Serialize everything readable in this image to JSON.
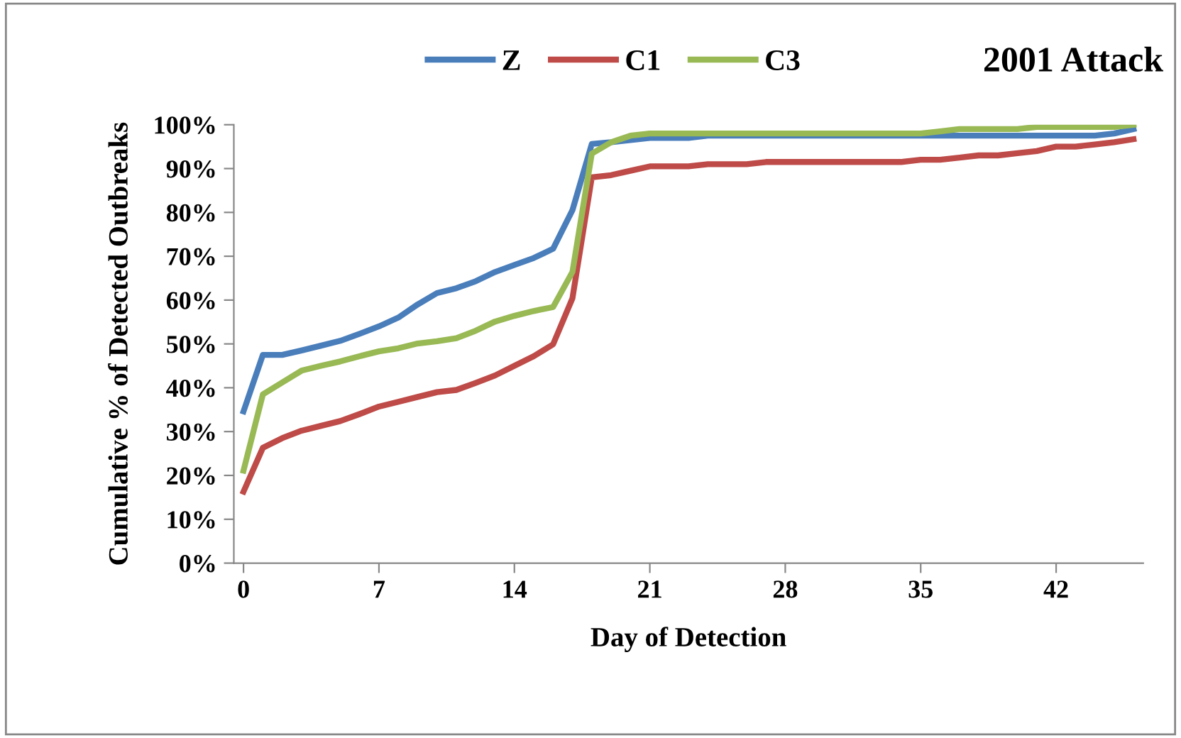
{
  "chart_data": {
    "type": "line",
    "title": "2001 Attack",
    "xlabel": "Day of Detection",
    "ylabel": "Cumulative % of Detected Outbreaks",
    "x": [
      0,
      1,
      2,
      3,
      4,
      5,
      6,
      7,
      8,
      9,
      10,
      11,
      12,
      13,
      14,
      15,
      16,
      17,
      18,
      19,
      20,
      21,
      22,
      23,
      24,
      25,
      26,
      27,
      28,
      29,
      30,
      31,
      32,
      33,
      34,
      35,
      36,
      37,
      38,
      39,
      40,
      41,
      42,
      43,
      44,
      45,
      46
    ],
    "series": [
      {
        "name": "Z",
        "color": "#4a7ebb",
        "values": [
          34.6,
          47.5,
          47.5,
          48.5,
          49.6,
          50.7,
          52.3,
          54,
          56,
          59,
          61.6,
          62.7,
          64.3,
          66.4,
          68,
          69.6,
          71.7,
          80.5,
          95.6,
          96,
          96.5,
          97,
          97,
          97,
          97.5,
          97.5,
          97.5,
          97.5,
          97.5,
          97.5,
          97.5,
          97.5,
          97.5,
          97.5,
          97.5,
          97.5,
          97.5,
          97.5,
          97.5,
          97.5,
          97.5,
          97.5,
          97.5,
          97.5,
          97.5,
          98,
          99
        ]
      },
      {
        "name": "C1",
        "color": "#be4b48",
        "values": [
          16.3,
          26.3,
          28.5,
          30.2,
          31.3,
          32.4,
          34,
          35.7,
          36.8,
          37.9,
          39,
          39.5,
          41.1,
          42.8,
          45,
          47.2,
          49.9,
          60.4,
          88,
          88.5,
          89.5,
          90.5,
          90.5,
          90.5,
          91,
          91,
          91,
          91.5,
          91.5,
          91.5,
          91.5,
          91.5,
          91.5,
          91.5,
          91.5,
          92,
          92,
          92.5,
          93,
          93,
          93.5,
          94,
          95,
          95,
          95.5,
          96,
          96.7
        ]
      },
      {
        "name": "C3",
        "color": "#98b954",
        "values": [
          21.1,
          38.5,
          41.2,
          43.9,
          45,
          46,
          47.2,
          48.3,
          49,
          50.1,
          50.6,
          51.3,
          53,
          55.1,
          56.4,
          57.5,
          58.4,
          66.4,
          93.4,
          96,
          97.5,
          98,
          98,
          98,
          98,
          98,
          98,
          98,
          98,
          98,
          98,
          98,
          98,
          98,
          98,
          98,
          98.5,
          99,
          99,
          99,
          99,
          99.5,
          99.5,
          99.5,
          99.5,
          99.5,
          100
        ]
      }
    ],
    "xlim": [
      -0.5,
      46.5
    ],
    "xticks": [
      0,
      7,
      14,
      21,
      28,
      35,
      42
    ],
    "ylim": [
      0,
      100
    ],
    "yticks": [
      {
        "value": 0,
        "label": "0%"
      },
      {
        "value": 10,
        "label": "10%"
      },
      {
        "value": 20,
        "label": "20%"
      },
      {
        "value": 30,
        "label": "30%"
      },
      {
        "value": 40,
        "label": "40%"
      },
      {
        "value": 50,
        "label": "50%"
      },
      {
        "value": 60,
        "label": "60%"
      },
      {
        "value": 70,
        "label": "70%"
      },
      {
        "value": 80,
        "label": "80%"
      },
      {
        "value": 90,
        "label": "90%"
      },
      {
        "value": 100,
        "label": "100%"
      }
    ],
    "legend": "top",
    "grid": false,
    "marker": "none",
    "line_style": "solid"
  }
}
